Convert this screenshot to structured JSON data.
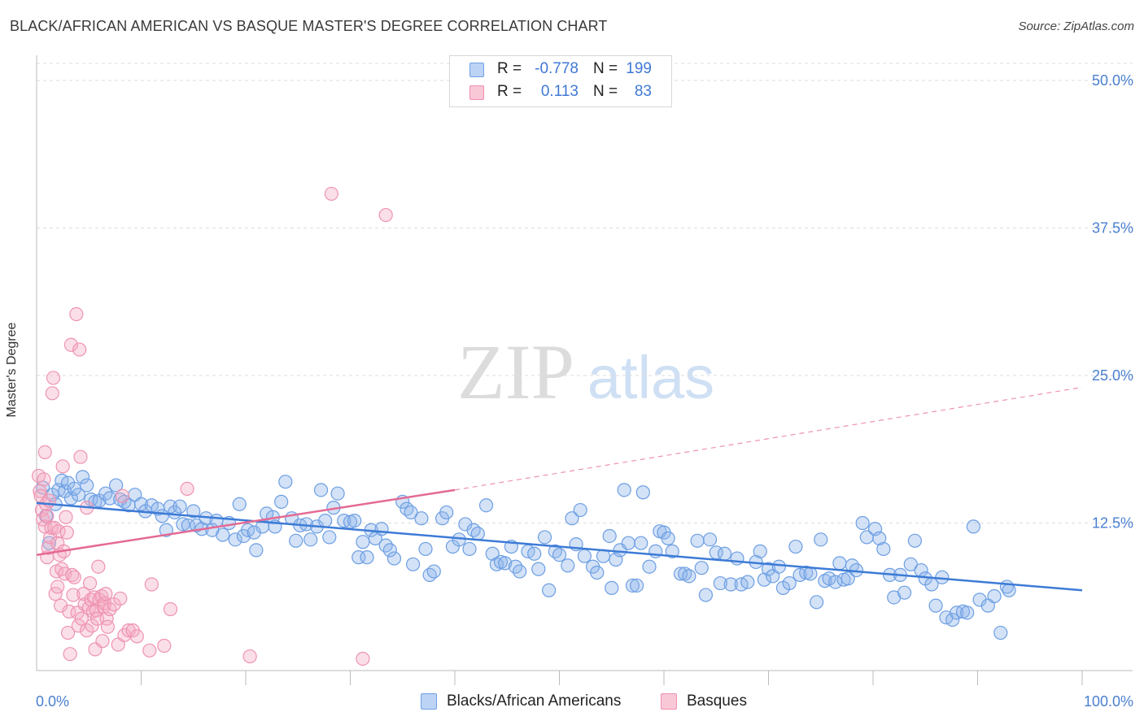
{
  "title": "BLACK/AFRICAN AMERICAN VS BASQUE MASTER'S DEGREE CORRELATION CHART",
  "source": "Source: ZipAtlas.com",
  "watermark": {
    "part1": "ZIP",
    "part2": "atlas"
  },
  "legend": {
    "rows": [
      {
        "r_label": "R =",
        "r_value": "-0.778",
        "n_label": "N =",
        "n_value": "199",
        "color": "#6fa0e6",
        "fill": "#bcd3f5"
      },
      {
        "r_label": "R =",
        "r_value": "0.113",
        "n_label": "N =",
        "n_value": "83",
        "color": "#ef8fae",
        "fill": "#f9c8d7"
      }
    ]
  },
  "bottom_legend": [
    {
      "label": "Blacks/African Americans",
      "color": "#6fa0e6",
      "fill": "#bcd3f5"
    },
    {
      "label": "Basques",
      "color": "#ef8fae",
      "fill": "#f9c8d7"
    }
  ],
  "colors": {
    "blue": "#3d7bd6",
    "blue_fill": "rgba(140,180,235,0.38)",
    "blue_stroke": "#6c9ee3",
    "pink": "#e46a93",
    "pink_fill": "rgba(245,170,195,0.38)",
    "pink_stroke": "#ee93b1",
    "grid": "#dddddd",
    "axis_text": "#4a7fd0"
  },
  "chart_data": {
    "type": "scatter",
    "title": "BLACK/AFRICAN AMERICAN VS BASQUE MASTER'S DEGREE CORRELATION CHART",
    "xlabel": "",
    "ylabel": "Master's Degree",
    "xlim": [
      0,
      100
    ],
    "ylim": [
      0,
      52
    ],
    "x_tick_labels": [
      "0.0%",
      "100.0%"
    ],
    "y_ticks": [
      12.5,
      25.0,
      37.5,
      50.0
    ],
    "y_tick_labels": [
      "12.5%",
      "25.0%",
      "37.5%",
      "50.0%"
    ],
    "grid": "horizontal dashed",
    "legend_position": "top-center",
    "series": [
      {
        "name": "Blacks/African Americans",
        "r": -0.778,
        "n": 199,
        "trend": {
          "x": [
            0,
            100
          ],
          "y": [
            14.2,
            6.8
          ],
          "style": "solid"
        },
        "points": [
          [
            0.6,
            15.5
          ],
          [
            0.9,
            13.1
          ],
          [
            1.2,
            10.8
          ],
          [
            1.5,
            14.9
          ],
          [
            1.8,
            14.1
          ],
          [
            2.1,
            15.3
          ],
          [
            2.4,
            16.1
          ],
          [
            2.7,
            15.2
          ],
          [
            3.0,
            15.9
          ],
          [
            3.3,
            14.6
          ],
          [
            3.6,
            15.4
          ],
          [
            4.0,
            14.9
          ],
          [
            4.4,
            16.4
          ],
          [
            4.8,
            15.7
          ],
          [
            5.2,
            14.5
          ],
          [
            5.6,
            14.3
          ],
          [
            6.0,
            14.4
          ],
          [
            6.6,
            15.0
          ],
          [
            7.0,
            14.6
          ],
          [
            7.6,
            15.7
          ],
          [
            8.0,
            14.5
          ],
          [
            8.4,
            14.3
          ],
          [
            8.8,
            14.0
          ],
          [
            9.4,
            14.9
          ],
          [
            10.0,
            14.1
          ],
          [
            10.4,
            13.5
          ],
          [
            11.0,
            14.0
          ],
          [
            11.6,
            13.7
          ],
          [
            12.0,
            13.1
          ],
          [
            12.4,
            11.9
          ],
          [
            12.8,
            13.9
          ],
          [
            13.2,
            13.4
          ],
          [
            13.7,
            13.9
          ],
          [
            14.0,
            12.4
          ],
          [
            14.5,
            12.3
          ],
          [
            15.0,
            13.5
          ],
          [
            15.3,
            12.3
          ],
          [
            15.8,
            12.0
          ],
          [
            16.2,
            12.9
          ],
          [
            16.8,
            11.9
          ],
          [
            17.2,
            12.7
          ],
          [
            17.8,
            11.5
          ],
          [
            18.4,
            12.5
          ],
          [
            19.0,
            11.1
          ],
          [
            19.4,
            14.1
          ],
          [
            19.8,
            11.4
          ],
          [
            20.2,
            11.9
          ],
          [
            20.8,
            11.7
          ],
          [
            21.0,
            10.2
          ],
          [
            21.6,
            12.2
          ],
          [
            22.0,
            13.3
          ],
          [
            22.6,
            13.0
          ],
          [
            22.8,
            12.2
          ],
          [
            23.4,
            14.3
          ],
          [
            23.8,
            16.0
          ],
          [
            24.4,
            12.9
          ],
          [
            24.8,
            11.0
          ],
          [
            25.2,
            12.3
          ],
          [
            25.8,
            12.4
          ],
          [
            26.2,
            11.1
          ],
          [
            26.8,
            12.2
          ],
          [
            27.2,
            15.3
          ],
          [
            27.6,
            12.7
          ],
          [
            28.0,
            11.3
          ],
          [
            28.4,
            13.8
          ],
          [
            28.8,
            15.0
          ],
          [
            29.4,
            12.7
          ],
          [
            30.0,
            12.6
          ],
          [
            30.4,
            12.7
          ],
          [
            30.8,
            9.6
          ],
          [
            31.2,
            10.9
          ],
          [
            31.6,
            9.6
          ],
          [
            32.0,
            11.9
          ],
          [
            32.4,
            11.2
          ],
          [
            33.0,
            12.0
          ],
          [
            33.4,
            10.6
          ],
          [
            33.8,
            10.2
          ],
          [
            34.2,
            9.5
          ],
          [
            35.0,
            14.3
          ],
          [
            35.4,
            13.7
          ],
          [
            35.8,
            13.4
          ],
          [
            36.0,
            9.0
          ],
          [
            36.8,
            12.9
          ],
          [
            37.2,
            10.3
          ],
          [
            37.6,
            8.1
          ],
          [
            38.0,
            8.4
          ],
          [
            38.8,
            12.9
          ],
          [
            39.2,
            13.4
          ],
          [
            39.8,
            10.5
          ],
          [
            40.4,
            11.1
          ],
          [
            41.0,
            12.4
          ],
          [
            41.4,
            10.3
          ],
          [
            41.8,
            11.9
          ],
          [
            42.2,
            11.6
          ],
          [
            43.0,
            14.0
          ],
          [
            43.6,
            9.9
          ],
          [
            44.0,
            9.0
          ],
          [
            44.4,
            9.2
          ],
          [
            44.8,
            9.1
          ],
          [
            45.4,
            10.5
          ],
          [
            45.8,
            8.8
          ],
          [
            46.2,
            8.4
          ],
          [
            47.0,
            10.1
          ],
          [
            47.6,
            9.9
          ],
          [
            48.0,
            8.6
          ],
          [
            48.6,
            11.3
          ],
          [
            49.0,
            6.8
          ],
          [
            49.6,
            10.1
          ],
          [
            50.0,
            9.8
          ],
          [
            50.8,
            8.9
          ],
          [
            51.2,
            12.9
          ],
          [
            51.6,
            10.7
          ],
          [
            52.0,
            13.6
          ],
          [
            52.4,
            9.7
          ],
          [
            53.2,
            8.8
          ],
          [
            53.6,
            8.3
          ],
          [
            54.2,
            9.7
          ],
          [
            54.8,
            11.4
          ],
          [
            55.0,
            7.0
          ],
          [
            55.4,
            9.4
          ],
          [
            55.8,
            10.2
          ],
          [
            56.2,
            15.3
          ],
          [
            56.6,
            10.8
          ],
          [
            57.0,
            7.2
          ],
          [
            57.4,
            7.2
          ],
          [
            57.8,
            10.8
          ],
          [
            58.0,
            15.1
          ],
          [
            58.6,
            8.8
          ],
          [
            59.2,
            10.1
          ],
          [
            59.6,
            11.8
          ],
          [
            60.0,
            11.7
          ],
          [
            60.4,
            11.2
          ],
          [
            60.8,
            10.1
          ],
          [
            61.6,
            8.2
          ],
          [
            62.0,
            8.2
          ],
          [
            62.4,
            8.0
          ],
          [
            63.2,
            11.0
          ],
          [
            63.6,
            8.7
          ],
          [
            64.0,
            6.4
          ],
          [
            64.4,
            11.1
          ],
          [
            65.0,
            10.0
          ],
          [
            65.4,
            7.4
          ],
          [
            65.8,
            9.9
          ],
          [
            66.4,
            7.3
          ],
          [
            67.0,
            9.5
          ],
          [
            67.4,
            7.3
          ],
          [
            68.0,
            7.5
          ],
          [
            68.8,
            9.2
          ],
          [
            69.2,
            10.1
          ],
          [
            69.6,
            7.7
          ],
          [
            70.0,
            8.6
          ],
          [
            70.4,
            8.0
          ],
          [
            71.0,
            8.8
          ],
          [
            71.4,
            7.0
          ],
          [
            72.0,
            7.4
          ],
          [
            72.6,
            10.5
          ],
          [
            73.0,
            8.1
          ],
          [
            73.6,
            8.3
          ],
          [
            74.0,
            8.2
          ],
          [
            74.6,
            5.8
          ],
          [
            75.0,
            11.1
          ],
          [
            75.4,
            7.6
          ],
          [
            75.8,
            7.8
          ],
          [
            76.4,
            7.5
          ],
          [
            76.8,
            9.1
          ],
          [
            77.2,
            7.7
          ],
          [
            77.6,
            7.8
          ],
          [
            78.0,
            8.9
          ],
          [
            78.4,
            8.5
          ],
          [
            79.0,
            12.5
          ],
          [
            79.4,
            11.3
          ],
          [
            80.2,
            12.0
          ],
          [
            80.6,
            11.2
          ],
          [
            81.0,
            10.3
          ],
          [
            81.6,
            8.1
          ],
          [
            82.0,
            6.2
          ],
          [
            82.6,
            8.1
          ],
          [
            83.0,
            6.6
          ],
          [
            83.6,
            9.0
          ],
          [
            84.0,
            11.0
          ],
          [
            84.6,
            8.5
          ],
          [
            85.0,
            7.8
          ],
          [
            85.6,
            7.3
          ],
          [
            86.0,
            5.5
          ],
          [
            86.6,
            7.9
          ],
          [
            87.0,
            4.5
          ],
          [
            87.6,
            4.3
          ],
          [
            88.0,
            4.9
          ],
          [
            88.6,
            5.0
          ],
          [
            89.0,
            4.9
          ],
          [
            89.6,
            12.2
          ],
          [
            90.2,
            6.0
          ],
          [
            91.0,
            5.5
          ],
          [
            91.6,
            6.3
          ],
          [
            92.2,
            3.2
          ],
          [
            92.8,
            7.1
          ],
          [
            93.0,
            6.8
          ]
        ]
      },
      {
        "name": "Basques",
        "r": 0.113,
        "n": 83,
        "trend": {
          "x": [
            0,
            40,
            100
          ],
          "y": [
            9.8,
            15.3,
            24.0
          ],
          "style": "solid-then-dashed"
        },
        "points": [
          [
            0.2,
            16.5
          ],
          [
            0.3,
            15.2
          ],
          [
            0.4,
            14.8
          ],
          [
            0.5,
            13.6
          ],
          [
            0.6,
            12.8
          ],
          [
            0.7,
            16.2
          ],
          [
            0.8,
            18.5
          ],
          [
            0.8,
            12.2
          ],
          [
            0.9,
            14.1
          ],
          [
            1.0,
            13.1
          ],
          [
            1.0,
            9.6
          ],
          [
            1.1,
            10.4
          ],
          [
            1.2,
            14.4
          ],
          [
            1.3,
            11.3
          ],
          [
            1.4,
            12.1
          ],
          [
            1.5,
            23.5
          ],
          [
            1.6,
            24.8
          ],
          [
            1.7,
            12.1
          ],
          [
            1.8,
            6.5
          ],
          [
            1.9,
            8.4
          ],
          [
            2.0,
            10.8
          ],
          [
            2.0,
            7.1
          ],
          [
            2.1,
            11.8
          ],
          [
            2.2,
            9.8
          ],
          [
            2.3,
            5.5
          ],
          [
            2.4,
            8.6
          ],
          [
            2.5,
            17.3
          ],
          [
            2.6,
            10.1
          ],
          [
            2.7,
            8.2
          ],
          [
            2.8,
            13.0
          ],
          [
            2.9,
            11.7
          ],
          [
            3.0,
            3.2
          ],
          [
            3.1,
            5.0
          ],
          [
            3.2,
            1.4
          ],
          [
            3.3,
            27.6
          ],
          [
            3.4,
            8.1
          ],
          [
            3.5,
            6.4
          ],
          [
            3.6,
            7.9
          ],
          [
            3.8,
            30.2
          ],
          [
            3.9,
            4.9
          ],
          [
            4.0,
            3.8
          ],
          [
            4.1,
            27.2
          ],
          [
            4.2,
            18.1
          ],
          [
            4.3,
            4.4
          ],
          [
            4.5,
            6.5
          ],
          [
            4.6,
            5.6
          ],
          [
            4.8,
            3.4
          ],
          [
            4.8,
            13.8
          ],
          [
            5.0,
            5.3
          ],
          [
            5.1,
            7.4
          ],
          [
            5.2,
            6.0
          ],
          [
            5.3,
            3.8
          ],
          [
            5.4,
            5.0
          ],
          [
            5.5,
            6.2
          ],
          [
            5.6,
            1.8
          ],
          [
            5.7,
            5.1
          ],
          [
            5.8,
            4.4
          ],
          [
            5.9,
            8.8
          ],
          [
            6.0,
            6.0
          ],
          [
            6.2,
            6.3
          ],
          [
            6.3,
            2.5
          ],
          [
            6.4,
            5.4
          ],
          [
            6.5,
            5.7
          ],
          [
            6.6,
            6.5
          ],
          [
            6.7,
            4.4
          ],
          [
            6.8,
            3.7
          ],
          [
            7.0,
            5.2
          ],
          [
            7.4,
            5.6
          ],
          [
            7.8,
            2.2
          ],
          [
            8.0,
            6.1
          ],
          [
            8.2,
            14.8
          ],
          [
            8.4,
            3.0
          ],
          [
            8.8,
            3.4
          ],
          [
            9.2,
            3.4
          ],
          [
            9.6,
            2.9
          ],
          [
            10.8,
            1.7
          ],
          [
            11.0,
            7.3
          ],
          [
            12.2,
            2.1
          ],
          [
            12.8,
            5.2
          ],
          [
            14.4,
            15.4
          ],
          [
            20.4,
            1.2
          ],
          [
            28.2,
            40.4
          ],
          [
            31.2,
            1.0
          ],
          [
            33.4,
            38.6
          ]
        ]
      }
    ]
  }
}
